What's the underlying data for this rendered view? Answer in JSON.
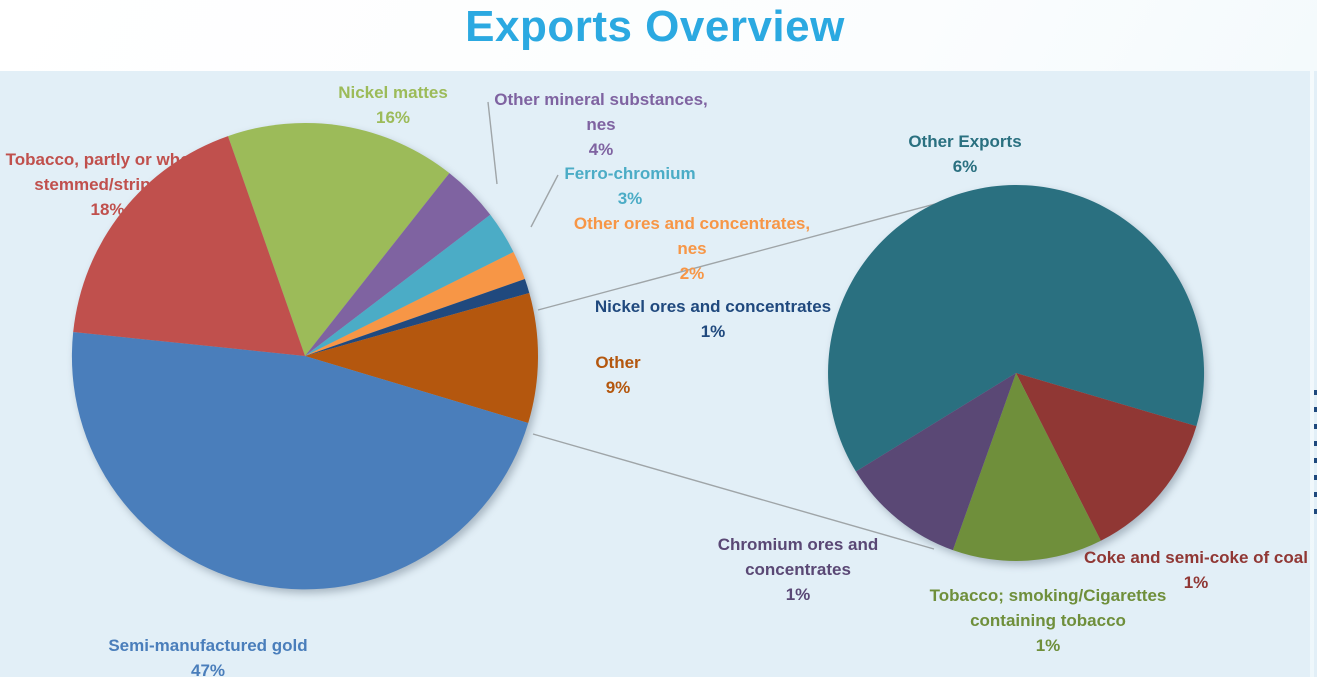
{
  "page": {
    "title": "Exports Overview",
    "title_color": "#2ba9e1",
    "panel_color": "#e2eff7"
  },
  "chart_data": {
    "type": "pie",
    "variant": "pie-of-pie",
    "title": "Exports Overview",
    "legend": "none",
    "data_labels": "category name + percentage",
    "connector_color": "#9fa5a8",
    "main_pie": {
      "slices": [
        {
          "label": "Nickel mattes",
          "value": 16,
          "pct": "16%",
          "color": "#9cbb59"
        },
        {
          "label": "Other mineral substances, nes",
          "value": 4,
          "pct": "4%",
          "color": "#7f63a1"
        },
        {
          "label": "Ferro-chromium",
          "value": 3,
          "pct": "3%",
          "color": "#4bacc6"
        },
        {
          "label": "Other ores and concentrates, nes",
          "value": 2,
          "pct": "2%",
          "color": "#f79646"
        },
        {
          "label": "Nickel ores and concentrates",
          "value": 1,
          "pct": "1%",
          "color": "#20497e"
        },
        {
          "label": "Other",
          "value": 9,
          "pct": "9%",
          "color": "#b4570e"
        },
        {
          "label": "Semi-manufactured gold",
          "value": 47,
          "pct": "47%",
          "color": "#4a7ebb"
        },
        {
          "label": "Tobacco, partly or wholly stemmed/stripped",
          "value": 18,
          "pct": "18%",
          "color": "#c0504d"
        }
      ]
    },
    "secondary_pie": {
      "note": "breakdown of the 9% Other slice",
      "slices": [
        {
          "label": "Other Exports",
          "value": 6,
          "pct": "6%",
          "color": "#2a7080"
        },
        {
          "label": "Coke and semi-coke of coal",
          "value": 1,
          "pct": "1%",
          "color": "#903734"
        },
        {
          "label": "Tobacco; smoking/Cigarettes containing tobacco",
          "value": 1,
          "pct": "1%",
          "color": "#6f8f3b"
        },
        {
          "label": "Chromium ores and concentrates",
          "value": 1,
          "pct": "1%",
          "color": "#5a4875"
        }
      ]
    }
  },
  "labels": {
    "nickel_mattes": {
      "text": "Nickel mattes"
    },
    "tobacco_stemmed": {
      "text": "Tobacco, partly or wholly\nstemmed/stripped"
    },
    "other_mineral": {
      "text": "Other mineral substances,\nnes"
    },
    "ferro_chromium": {
      "text": "Ferro-chromium"
    },
    "other_ores": {
      "text": "Other ores and concentrates,\nnes"
    },
    "nickel_ores": {
      "text": "Nickel ores and concentrates"
    },
    "other": {
      "text": "Other"
    },
    "semi_gold": {
      "text": "Semi-manufactured gold"
    },
    "other_exports": {
      "text": "Other Exports"
    },
    "coke": {
      "text": "Coke and semi-coke of coal"
    },
    "tobacco_smoking": {
      "text": "Tobacco; smoking/Cigarettes\ncontaining tobacco"
    },
    "chromium": {
      "text": "Chromium ores and\nconcentrates"
    }
  }
}
